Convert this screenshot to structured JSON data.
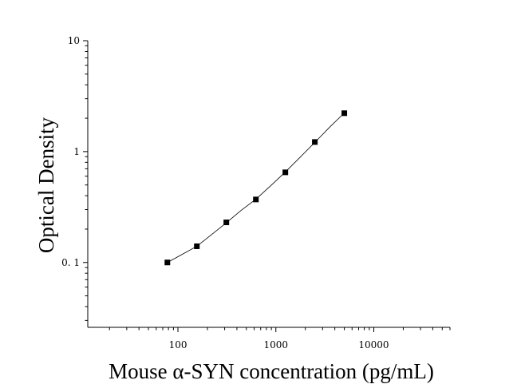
{
  "chart_data": {
    "type": "scatter",
    "xlabel": "Mouse α-SYN concentration (pg/mL)",
    "ylabel": "Optical Density",
    "x_scale": "log",
    "y_scale": "log",
    "xlim": [
      12,
      60000
    ],
    "ylim": [
      0.026,
      10
    ],
    "x_ticks": [
      {
        "value": 100,
        "label": "100"
      },
      {
        "value": 1000,
        "label": "1000"
      },
      {
        "value": 10000,
        "label": "10000"
      }
    ],
    "y_ticks": [
      {
        "value": 0.1,
        "label": "0. 1"
      },
      {
        "value": 1,
        "label": "1"
      },
      {
        "value": 10,
        "label": "10"
      }
    ],
    "grid": false,
    "legend": "none",
    "marker": "square",
    "color": "#000000",
    "series": [
      {
        "x": [
          78,
          156,
          312,
          625,
          1250,
          2500,
          5000
        ],
        "y": [
          0.1,
          0.14,
          0.23,
          0.37,
          0.65,
          1.22,
          2.22
        ]
      }
    ],
    "fit_curve": {
      "x": [
        78,
        110,
        156,
        220,
        312,
        440,
        625,
        880,
        1250,
        1770,
        2500,
        3540,
        5000
      ],
      "y": [
        0.1,
        0.118,
        0.14,
        0.178,
        0.228,
        0.294,
        0.372,
        0.49,
        0.655,
        0.89,
        1.21,
        1.66,
        2.23
      ]
    }
  }
}
